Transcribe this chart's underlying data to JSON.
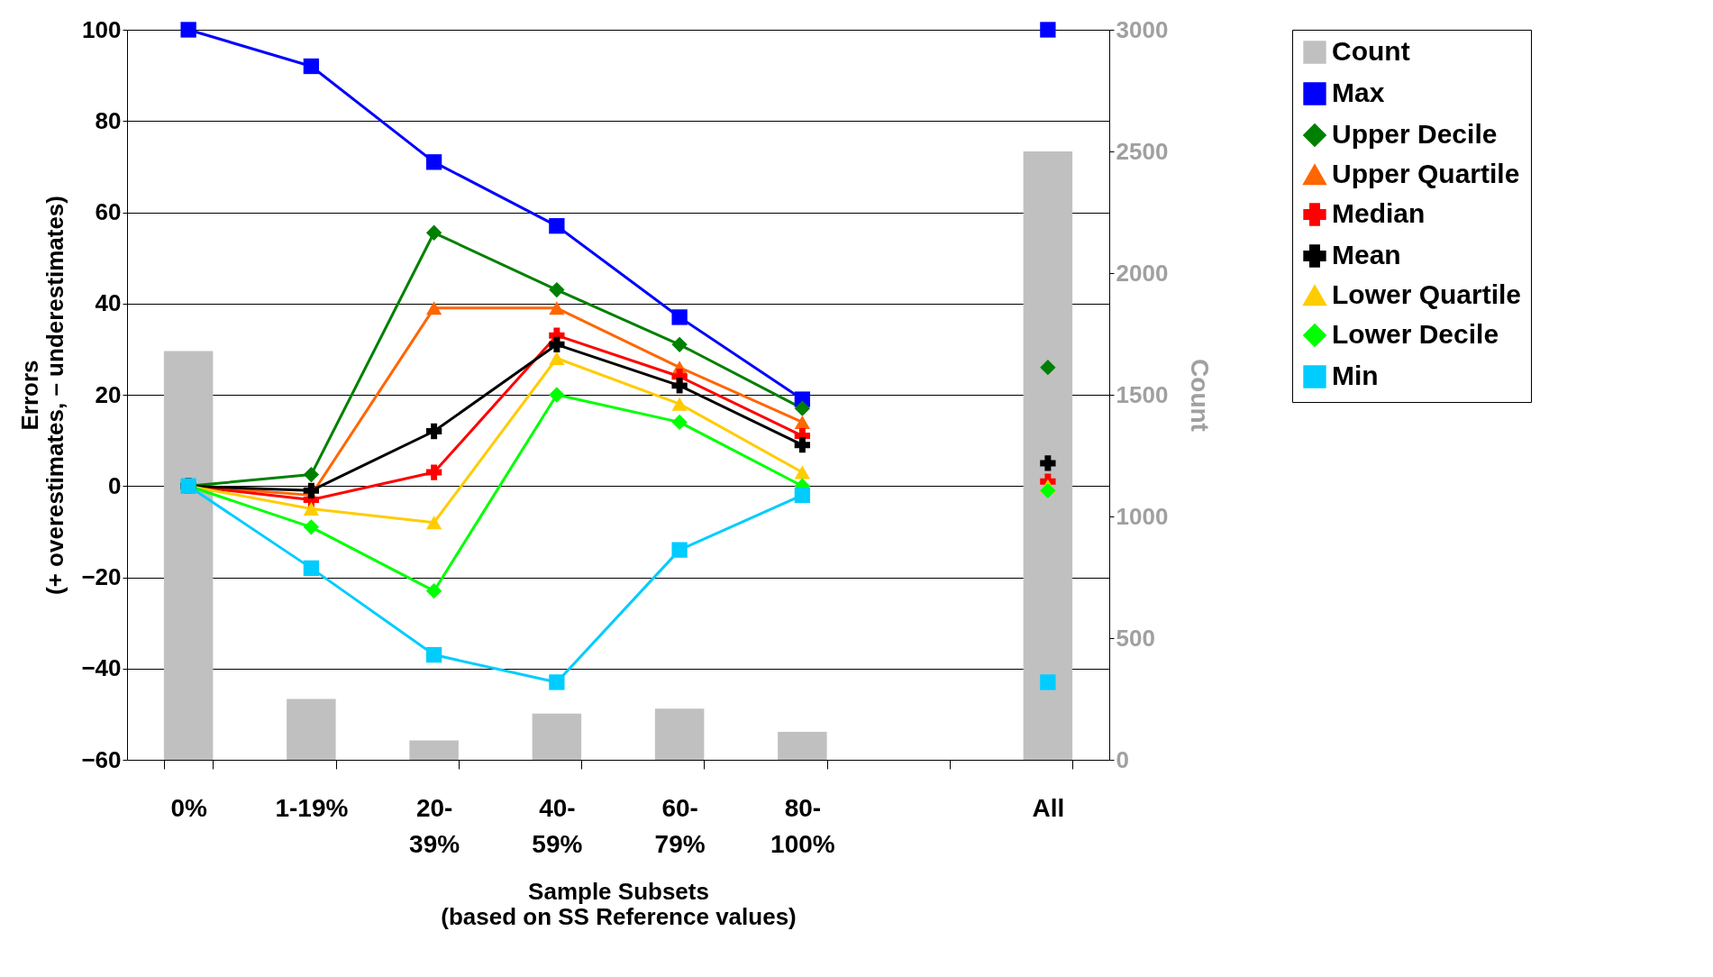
{
  "chart_data": {
    "type": "line",
    "xlabel": "Sample Subsets\n(based on SS Reference values)",
    "ylabel": "Errors\n(+ overestimates, – underestimates)",
    "y2label": "Count",
    "categories": [
      "0%",
      "1-19%",
      "20-39%",
      "40-59%",
      "60-79%",
      "80-100%",
      null,
      "All"
    ],
    "ylim": [
      -60,
      100
    ],
    "yticks": [
      -60,
      -40,
      -20,
      0,
      20,
      40,
      60,
      80,
      100
    ],
    "y2lim": [
      0,
      3000
    ],
    "y2ticks": [
      0,
      500,
      1000,
      1500,
      2000,
      2500,
      3000
    ],
    "grid": "y",
    "legend": "right",
    "series": [
      {
        "name": "Count",
        "type": "bar",
        "axis": "y2",
        "color": "#c0c0c0",
        "values": [
          1680,
          250,
          80,
          190,
          210,
          115,
          null,
          2500
        ]
      },
      {
        "name": "Max",
        "color": "#0000ff",
        "marker": "square",
        "values": [
          100,
          92,
          71,
          57,
          37,
          19,
          null,
          100
        ]
      },
      {
        "name": "Upper Decile",
        "color": "#008000",
        "marker": "diamond",
        "values": [
          0,
          2.5,
          55.5,
          43,
          31,
          17,
          null,
          26
        ]
      },
      {
        "name": "Upper Quartile",
        "color": "#ff6600",
        "marker": "triangle",
        "values": [
          0,
          -2,
          39,
          39,
          26,
          14,
          null,
          null
        ]
      },
      {
        "name": "Median",
        "color": "#ff0000",
        "marker": "cross",
        "values": [
          0,
          -3,
          3,
          33,
          24,
          11,
          null,
          1
        ]
      },
      {
        "name": "Mean",
        "color": "#000000",
        "marker": "cross",
        "values": [
          0,
          -1,
          12,
          31,
          22,
          9,
          null,
          5
        ]
      },
      {
        "name": "Lower Quartile",
        "color": "#ffcc00",
        "marker": "triangle",
        "values": [
          0,
          -5,
          -8,
          28,
          18,
          3,
          null,
          0
        ]
      },
      {
        "name": "Lower Decile",
        "color": "#00ff00",
        "marker": "diamond",
        "values": [
          0,
          -9,
          -23,
          20,
          14,
          0,
          null,
          -1
        ]
      },
      {
        "name": "Min",
        "color": "#00ccff",
        "marker": "square",
        "values": [
          0,
          -18,
          -37,
          -43,
          -14,
          -2,
          null,
          -43
        ]
      }
    ]
  }
}
